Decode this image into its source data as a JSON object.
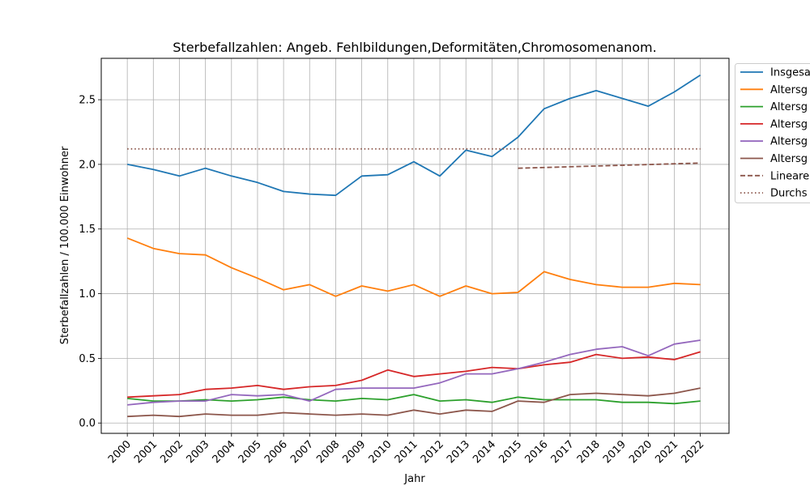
{
  "chart_data": {
    "type": "line",
    "title": "Sterbefallzahlen: Angeb. Fehlbildungen,Deformitäten,Chromosomenanom.",
    "xlabel": "Jahr",
    "ylabel": "Sterbefallzahlen / 100.000 Einwohner",
    "x": [
      2000,
      2001,
      2002,
      2003,
      2004,
      2005,
      2006,
      2007,
      2008,
      2009,
      2010,
      2011,
      2012,
      2013,
      2014,
      2015,
      2016,
      2017,
      2018,
      2019,
      2020,
      2021,
      2022
    ],
    "xlim": [
      1999,
      2023.1
    ],
    "ylim": [
      -0.08,
      2.82
    ],
    "yticks": [
      0.0,
      0.5,
      1.0,
      1.5,
      2.0,
      2.5
    ],
    "grid": true,
    "legend_position": "upper-right, outside the plot area (clipped)",
    "series": [
      {
        "name": "Insgesa",
        "color": "#1f77b4",
        "style": "solid",
        "values": [
          2.0,
          1.96,
          1.91,
          1.97,
          1.91,
          1.86,
          1.79,
          1.77,
          1.76,
          1.91,
          1.92,
          2.02,
          1.91,
          2.11,
          2.06,
          2.21,
          2.43,
          2.51,
          2.57,
          2.51,
          2.45,
          2.56,
          2.69
        ]
      },
      {
        "name": "Altersg",
        "color": "#ff7f0e",
        "style": "solid",
        "values": [
          1.43,
          1.35,
          1.31,
          1.3,
          1.2,
          1.12,
          1.03,
          1.07,
          0.98,
          1.06,
          1.02,
          1.07,
          0.98,
          1.06,
          1.0,
          1.01,
          1.17,
          1.11,
          1.07,
          1.05,
          1.05,
          1.08,
          1.07
        ]
      },
      {
        "name": "Altersg",
        "color": "#2ca02c",
        "style": "solid",
        "values": [
          0.19,
          0.17,
          0.17,
          0.18,
          0.17,
          0.18,
          0.2,
          0.18,
          0.17,
          0.19,
          0.18,
          0.22,
          0.17,
          0.18,
          0.16,
          0.2,
          0.18,
          0.18,
          0.18,
          0.16,
          0.16,
          0.15,
          0.17
        ]
      },
      {
        "name": "Altersg",
        "color": "#d62728",
        "style": "solid",
        "values": [
          0.2,
          0.21,
          0.22,
          0.26,
          0.27,
          0.29,
          0.26,
          0.28,
          0.29,
          0.33,
          0.41,
          0.36,
          0.38,
          0.4,
          0.43,
          0.42,
          0.45,
          0.47,
          0.53,
          0.5,
          0.51,
          0.49,
          0.55
        ]
      },
      {
        "name": "Altersg",
        "color": "#9467bd",
        "style": "solid",
        "values": [
          0.14,
          0.16,
          0.17,
          0.17,
          0.22,
          0.21,
          0.22,
          0.17,
          0.26,
          0.27,
          0.27,
          0.27,
          0.31,
          0.38,
          0.38,
          0.42,
          0.47,
          0.53,
          0.57,
          0.59,
          0.52,
          0.61,
          0.64
        ]
      },
      {
        "name": "Altersg",
        "color": "#8c564b",
        "style": "solid",
        "values": [
          0.05,
          0.06,
          0.05,
          0.07,
          0.06,
          0.06,
          0.08,
          0.07,
          0.06,
          0.07,
          0.06,
          0.1,
          0.07,
          0.1,
          0.09,
          0.17,
          0.16,
          0.22,
          0.23,
          0.22,
          0.21,
          0.23,
          0.27
        ]
      },
      {
        "name": "Lineare",
        "color": "#8c564b",
        "style": "dashed",
        "x": [
          2015,
          2022
        ],
        "values": [
          1.97,
          2.01
        ]
      },
      {
        "name": "Durchs",
        "color": "#8c564b",
        "style": "dotted",
        "x": [
          2000,
          2022
        ],
        "values": [
          2.12,
          2.12
        ]
      }
    ]
  }
}
